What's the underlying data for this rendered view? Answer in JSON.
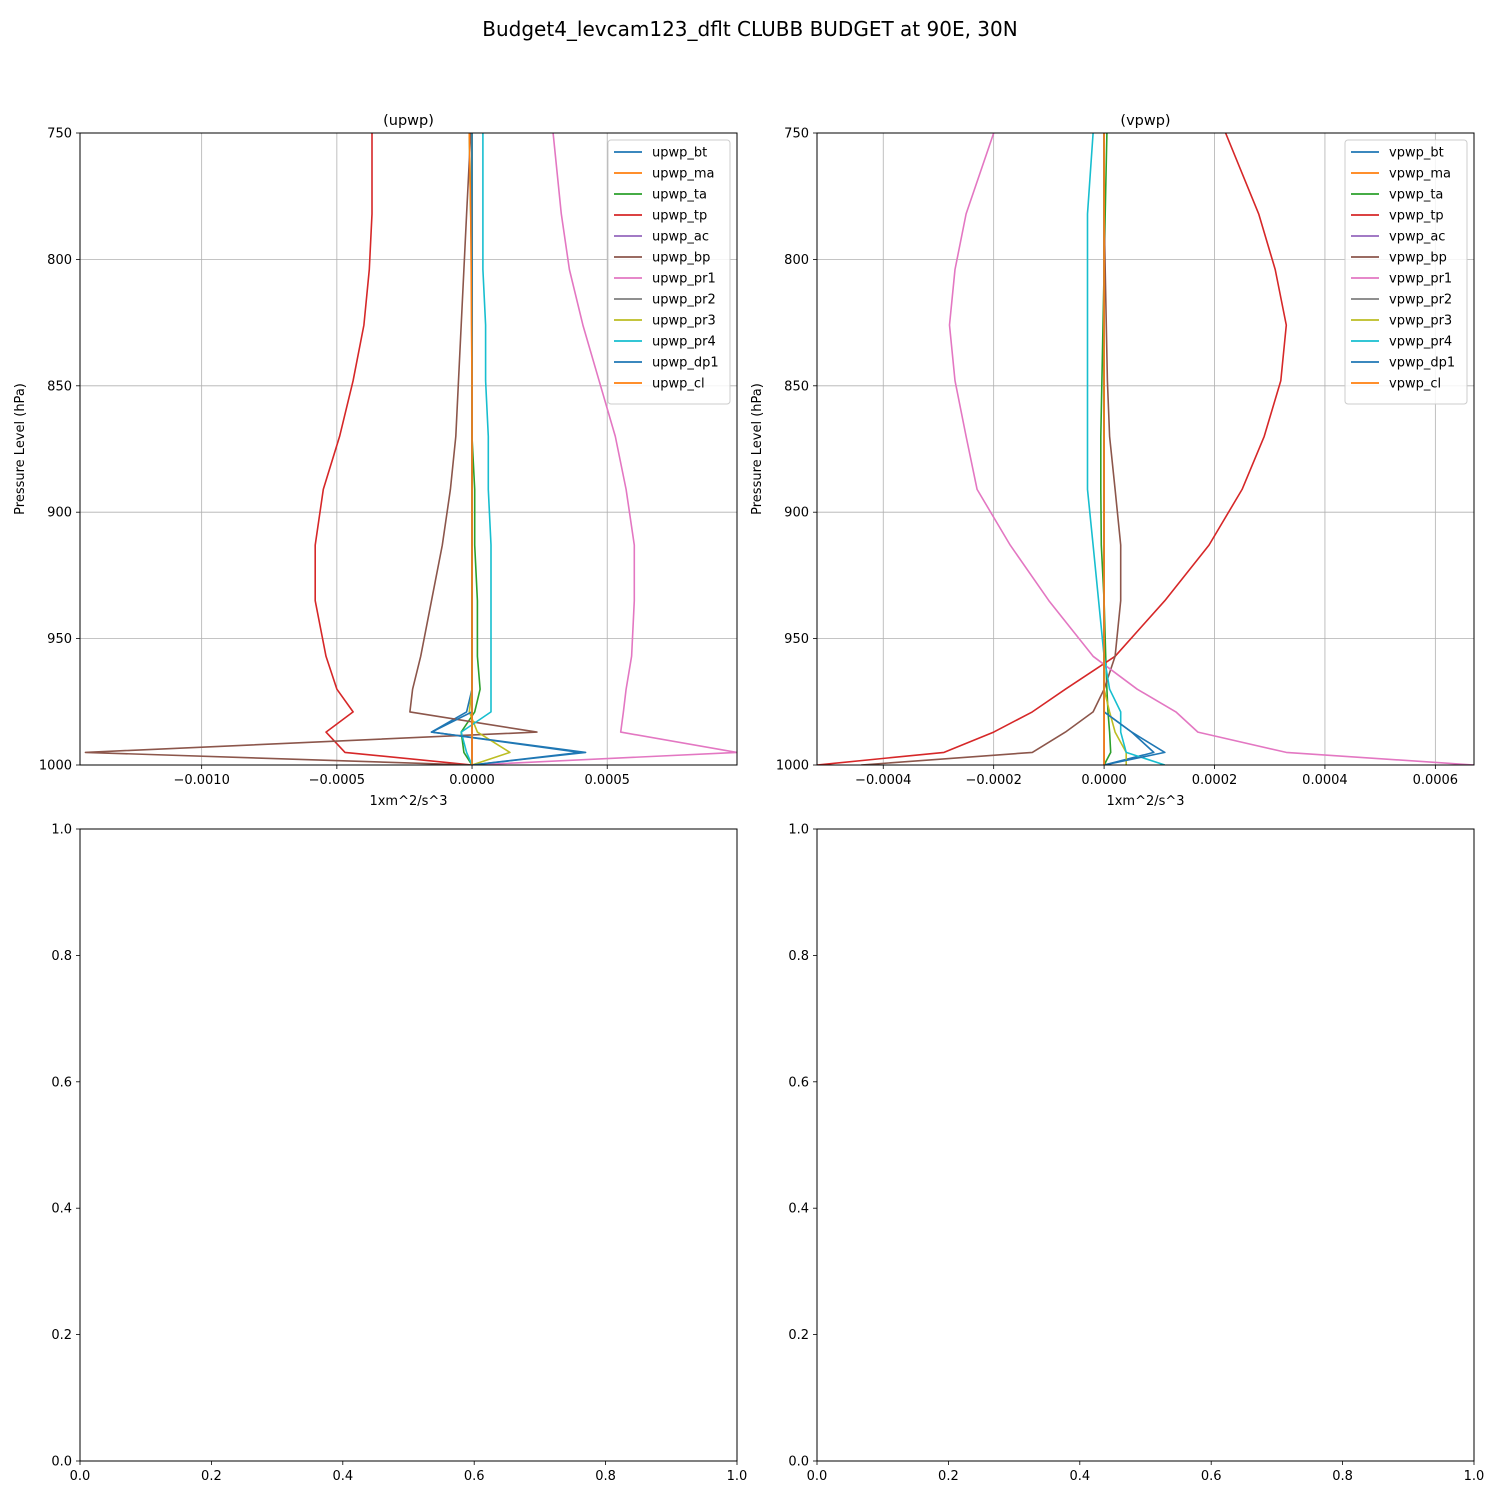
{
  "figure": {
    "suptitle": "Budget4_levcam123_dflt CLUBB BUDGET at 90E, 30N"
  },
  "colors": [
    "#1f77b4",
    "#ff7f0e",
    "#2ca02c",
    "#d62728",
    "#9467bd",
    "#8c564b",
    "#e377c2",
    "#7f7f7f",
    "#bcbd22",
    "#17becf",
    "#1f77b4",
    "#ff7f0e"
  ],
  "chart_data": [
    {
      "type": "line",
      "title": "(upwp)",
      "xlabel": "1xm^2/s^3",
      "ylabel": "Pressure Level (hPa)",
      "xlim": [
        -0.00145,
        0.00098
      ],
      "ylim": [
        1000,
        750
      ],
      "yinverted": true,
      "grid": true,
      "legend": "top-right",
      "xticks": [
        -0.001,
        -0.0005,
        0.0,
        0.0005
      ],
      "xtick_labels": [
        "−0.0010",
        "−0.0005",
        "0.0000",
        "0.0005"
      ],
      "yticks": [
        750,
        800,
        850,
        900,
        950,
        1000
      ],
      "ytick_labels": [
        "750",
        "800",
        "850",
        "900",
        "950",
        "1000"
      ],
      "levels": [
        750,
        782,
        804,
        826,
        848,
        870,
        891,
        913,
        935,
        957,
        970,
        979,
        987,
        995,
        1000
      ],
      "series": [
        {
          "name": "upwp_bt",
          "values": [
            0.0,
            0.0,
            0.0,
            0.0,
            0.0,
            0.0,
            0.0,
            0.0,
            0.0,
            0.0,
            0.0,
            -2e-05,
            -0.00015,
            0.0004,
            0.0
          ]
        },
        {
          "name": "upwp_ma",
          "values": [
            0.0,
            0.0,
            0.0,
            0.0,
            0.0,
            0.0,
            0.0,
            0.0,
            0.0,
            0.0,
            0.0,
            0.0,
            0.0,
            0.0,
            0.0
          ]
        },
        {
          "name": "upwp_ta",
          "values": [
            -1e-05,
            -5e-06,
            0.0,
            0.0,
            0.0,
            0.0,
            1e-05,
            1e-05,
            2e-05,
            2e-05,
            3e-05,
            1e-05,
            -4e-05,
            -3e-05,
            0.0
          ]
        },
        {
          "name": "upwp_tp",
          "values": [
            -0.00037,
            -0.00037,
            -0.00038,
            -0.0004,
            -0.00044,
            -0.00049,
            -0.00055,
            -0.00058,
            -0.00058,
            -0.00054,
            -0.0005,
            -0.00044,
            -0.00054,
            -0.00047,
            0.0
          ]
        },
        {
          "name": "upwp_ac",
          "values": [
            0.0,
            0.0,
            0.0,
            0.0,
            0.0,
            0.0,
            0.0,
            0.0,
            0.0,
            0.0,
            0.0,
            0.0,
            0.0,
            0.0,
            0.0
          ]
        },
        {
          "name": "upwp_bp",
          "values": [
            -5e-06,
            -2e-05,
            -3e-05,
            -4e-05,
            -5e-05,
            -6e-05,
            -8e-05,
            -0.00011,
            -0.00015,
            -0.00019,
            -0.00022,
            -0.00023,
            0.00024,
            -0.00143,
            0.0
          ]
        },
        {
          "name": "upwp_pr1",
          "values": [
            0.0003,
            0.00033,
            0.00036,
            0.00041,
            0.00047,
            0.00053,
            0.00057,
            0.0006,
            0.0006,
            0.00059,
            0.00057,
            0.00056,
            0.00055,
            0.00098,
            0.0
          ]
        },
        {
          "name": "upwp_pr2",
          "values": [
            0.0,
            0.0,
            0.0,
            0.0,
            0.0,
            0.0,
            0.0,
            0.0,
            0.0,
            0.0,
            0.0,
            0.0,
            0.0,
            0.0,
            0.0
          ]
        },
        {
          "name": "upwp_pr3",
          "values": [
            0.0,
            0.0,
            0.0,
            0.0,
            0.0,
            0.0,
            0.0,
            0.0,
            0.0,
            0.0,
            0.0,
            -1e-05,
            2e-05,
            0.00014,
            0.0
          ]
        },
        {
          "name": "upwp_pr4",
          "values": [
            4e-05,
            4e-05,
            4e-05,
            5e-05,
            5e-05,
            6e-05,
            6e-05,
            7e-05,
            7e-05,
            7e-05,
            7e-05,
            7e-05,
            -4e-05,
            -2e-05,
            0.0
          ]
        },
        {
          "name": "upwp_dp1",
          "values": [
            0.0,
            0.0,
            0.0,
            0.0,
            0.0,
            0.0,
            0.0,
            0.0,
            0.0,
            0.0,
            0.0,
            0.0,
            -0.00015,
            0.00042,
            0.0
          ]
        },
        {
          "name": "upwp_cl",
          "values": [
            -1e-05,
            -5e-06,
            -3e-06,
            -2e-06,
            0.0,
            0.0,
            0.0,
            0.0,
            0.0,
            0.0,
            0.0,
            0.0,
            0.0,
            0.0,
            0.0
          ]
        }
      ]
    },
    {
      "type": "line",
      "title": "(vpwp)",
      "xlabel": "1xm^2/s^3",
      "ylabel": "Pressure Level (hPa)",
      "xlim": [
        -0.00052,
        0.00067
      ],
      "ylim": [
        1000,
        750
      ],
      "yinverted": true,
      "grid": true,
      "legend": "top-right",
      "xticks": [
        -0.0004,
        -0.0002,
        0.0,
        0.0002,
        0.0004,
        0.0006
      ],
      "xtick_labels": [
        "−0.0004",
        "−0.0002",
        "0.0000",
        "0.0002",
        "0.0004",
        "0.0006"
      ],
      "yticks": [
        750,
        800,
        850,
        900,
        950,
        1000
      ],
      "ytick_labels": [
        "750",
        "800",
        "850",
        "900",
        "950",
        "1000"
      ],
      "levels": [
        750,
        782,
        804,
        826,
        848,
        870,
        891,
        913,
        935,
        957,
        970,
        979,
        987,
        995,
        1000
      ],
      "series": [
        {
          "name": "vpwp_bt",
          "values": [
            0.0,
            0.0,
            0.0,
            0.0,
            0.0,
            0.0,
            0.0,
            0.0,
            0.0,
            0.0,
            0.0,
            0.0,
            5e-05,
            9e-05,
            0.0
          ]
        },
        {
          "name": "vpwp_ma",
          "values": [
            0.0,
            0.0,
            0.0,
            0.0,
            0.0,
            0.0,
            0.0,
            0.0,
            0.0,
            0.0,
            0.0,
            0.0,
            0.0,
            0.0,
            0.0
          ]
        },
        {
          "name": "vpwp_ta",
          "values": [
            5e-06,
            2e-06,
            0.0,
            -2e-06,
            -4e-06,
            -6e-06,
            -6e-06,
            -5e-06,
            0.0,
            3e-06,
            5e-06,
            7e-06,
            1e-05,
            1.2e-05,
            0.0
          ]
        },
        {
          "name": "vpwp_tp",
          "values": [
            0.00022,
            0.00028,
            0.00031,
            0.00033,
            0.00032,
            0.00029,
            0.00025,
            0.00019,
            0.00011,
            2e-05,
            -7e-05,
            -0.00013,
            -0.0002,
            -0.00029,
            -0.00052
          ]
        },
        {
          "name": "vpwp_ac",
          "values": [
            0.0,
            0.0,
            0.0,
            0.0,
            0.0,
            0.0,
            0.0,
            0.0,
            0.0,
            0.0,
            0.0,
            0.0,
            0.0,
            0.0,
            0.0
          ]
        },
        {
          "name": "vpwp_bp",
          "values": [
            0.0,
            0.0,
            2e-06,
            4e-06,
            6e-06,
            1e-05,
            2e-05,
            3e-05,
            3e-05,
            2e-05,
            0.0,
            -2e-05,
            -7e-05,
            -0.00013,
            -0.00044
          ]
        },
        {
          "name": "vpwp_pr1",
          "values": [
            -0.0002,
            -0.00025,
            -0.00027,
            -0.00028,
            -0.00027,
            -0.00025,
            -0.00023,
            -0.00017,
            -0.0001,
            -2e-05,
            6e-05,
            0.00013,
            0.00017,
            0.00033,
            0.00067
          ]
        },
        {
          "name": "vpwp_pr2",
          "values": [
            0.0,
            0.0,
            0.0,
            0.0,
            0.0,
            0.0,
            0.0,
            0.0,
            0.0,
            0.0,
            0.0,
            0.0,
            0.0,
            0.0,
            0.0
          ]
        },
        {
          "name": "vpwp_pr3",
          "values": [
            0.0,
            0.0,
            0.0,
            0.0,
            0.0,
            0.0,
            0.0,
            0.0,
            0.0,
            0.0,
            0.0,
            1e-05,
            2e-05,
            4e-05,
            4e-05
          ]
        },
        {
          "name": "vpwp_pr4",
          "values": [
            -2e-05,
            -3e-05,
            -3e-05,
            -3e-05,
            -3e-05,
            -3e-05,
            -3e-05,
            -2e-05,
            -1e-05,
            0.0,
            1e-05,
            3e-05,
            3e-05,
            4e-05,
            0.00011
          ]
        },
        {
          "name": "vpwp_dp1",
          "values": [
            0.0,
            0.0,
            0.0,
            0.0,
            0.0,
            0.0,
            0.0,
            0.0,
            0.0,
            0.0,
            0.0,
            0.0,
            5e-05,
            0.00011,
            0.0
          ]
        },
        {
          "name": "vpwp_cl",
          "values": [
            0.0,
            0.0,
            0.0,
            0.0,
            0.0,
            0.0,
            0.0,
            0.0,
            0.0,
            0.0,
            0.0,
            0.0,
            0.0,
            0.0,
            0.0
          ]
        }
      ]
    },
    {
      "type": "line",
      "title": "",
      "xlim": [
        0.0,
        1.0
      ],
      "ylim": [
        0.0,
        1.0
      ],
      "grid": false,
      "xticks": [
        0.0,
        0.2,
        0.4,
        0.6,
        0.8,
        1.0
      ],
      "xtick_labels": [
        "0.0",
        "0.2",
        "0.4",
        "0.6",
        "0.8",
        "1.0"
      ],
      "yticks": [
        0.0,
        0.2,
        0.4,
        0.6,
        0.8,
        1.0
      ],
      "ytick_labels": [
        "0.0",
        "0.2",
        "0.4",
        "0.6",
        "0.8",
        "1.0"
      ],
      "series": []
    },
    {
      "type": "line",
      "title": "",
      "xlim": [
        0.0,
        1.0
      ],
      "ylim": [
        0.0,
        1.0
      ],
      "grid": false,
      "xticks": [
        0.0,
        0.2,
        0.4,
        0.6,
        0.8,
        1.0
      ],
      "xtick_labels": [
        "0.0",
        "0.2",
        "0.4",
        "0.6",
        "0.8",
        "1.0"
      ],
      "yticks": [
        0.0,
        0.2,
        0.4,
        0.6,
        0.8,
        1.0
      ],
      "ytick_labels": [
        "0.0",
        "0.2",
        "0.4",
        "0.6",
        "0.8",
        "1.0"
      ],
      "series": []
    }
  ]
}
